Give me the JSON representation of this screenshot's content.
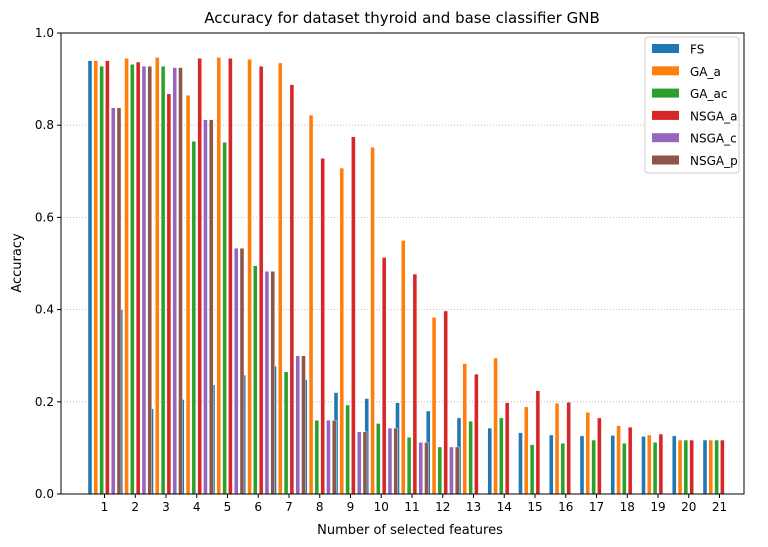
{
  "chart_data": {
    "type": "bar",
    "title": "Accuracy for dataset thyroid and base classifier GNB",
    "xlabel": "Number of selected features",
    "ylabel": "Accuracy",
    "ylim": [
      0,
      1
    ],
    "yticks": [
      "0.0",
      "0.2",
      "0.4",
      "0.6",
      "0.8",
      "1.0"
    ],
    "grid": "horizontal dotted",
    "legend_position": "top-right",
    "categories": [
      "1",
      "2",
      "3",
      "4",
      "5",
      "6",
      "7",
      "8",
      "9",
      "10",
      "11",
      "12",
      "13",
      "14",
      "15",
      "16",
      "17",
      "18",
      "19",
      "20",
      "21"
    ],
    "series": [
      {
        "name": "FS",
        "color": "#1f77b4",
        "values": [
          0.94,
          0.4,
          0.185,
          0.205,
          0.237,
          0.258,
          0.277,
          0.248,
          0.22,
          0.207,
          0.198,
          0.18,
          0.165,
          0.143,
          0.133,
          0.128,
          0.126,
          0.127,
          0.125,
          0.126,
          0.117
        ]
      },
      {
        "name": "GA_a",
        "color": "#ff7f0e",
        "values": [
          0.94,
          0.945,
          0.947,
          0.865,
          0.947,
          0.943,
          0.935,
          0.822,
          0.707,
          0.752,
          0.55,
          0.383,
          0.283,
          0.295,
          0.189,
          0.197,
          0.177,
          0.148,
          0.128,
          0.117,
          0.117
        ]
      },
      {
        "name": "GA_ac",
        "color": "#2ca02c",
        "values": [
          0.928,
          0.932,
          0.928,
          0.765,
          0.763,
          0.495,
          0.265,
          0.16,
          0.193,
          0.153,
          0.123,
          0.102,
          0.158,
          0.165,
          0.107,
          0.11,
          0.117,
          0.11,
          0.112,
          0.117,
          0.117
        ]
      },
      {
        "name": "NSGA_a",
        "color": "#d62728",
        "values": [
          0.94,
          0.937,
          0.868,
          0.945,
          0.945,
          0.928,
          0.888,
          0.728,
          0.775,
          0.513,
          0.477,
          0.397,
          0.26,
          0.198,
          0.224,
          0.199,
          0.165,
          0.145,
          0.13,
          0.117,
          0.117
        ]
      },
      {
        "name": "NSGA_c",
        "color": "#9467bd",
        "values": [
          0.838,
          0.928,
          0.925,
          0.812,
          0.533,
          0.483,
          0.3,
          0.16,
          0.135,
          0.143,
          0.112,
          0.102,
          null,
          null,
          null,
          null,
          null,
          null,
          null,
          null,
          null
        ]
      },
      {
        "name": "NSGA_p",
        "color": "#8c564b",
        "values": [
          0.838,
          0.928,
          0.925,
          0.812,
          0.533,
          0.483,
          0.3,
          0.16,
          0.135,
          0.143,
          0.112,
          0.102,
          null,
          null,
          null,
          null,
          null,
          null,
          null,
          null,
          null
        ]
      }
    ]
  }
}
